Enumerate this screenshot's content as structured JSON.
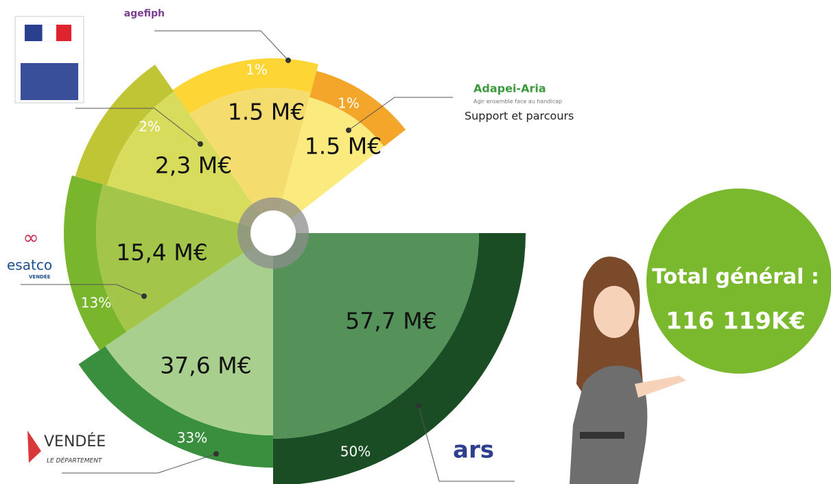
{
  "chart_data": {
    "type": "polar",
    "categories": [
      "ars",
      "VENDÉE",
      "esatco",
      null,
      "agefiph",
      "Adapei-Aria"
    ],
    "values": [
      57.7,
      37.6,
      15.4,
      2.3,
      1.5,
      1.5
    ],
    "value_labels": [
      "57,7 M€",
      "37,6 M€",
      "15,4 M€",
      "2,3 M€",
      "1.5 M€",
      "1.5 M€"
    ],
    "percentages": [
      50,
      33,
      13,
      2,
      1,
      1
    ],
    "percentage_labels": [
      "50%",
      "33%",
      "13%",
      "2%",
      "1%",
      "1%"
    ],
    "colors": [
      "#1b4d24",
      "#3a8f3e",
      "#79b52d",
      "#bfc535",
      "#fdd535",
      "#f3a62a"
    ],
    "inner_colors": [
      "#54925a",
      "#a8cf8e",
      "#a3c54a",
      "#d7dc5c",
      "#f5dc6e",
      "#fbeb7e"
    ],
    "logo_texts": {
      "vendee_sub": "LE DÉPARTEMENT",
      "esatco_sub": "VENDÉE",
      "adapei_tagline": "Agir ensemble face au handicap",
      "adapei_caption": "Support et parcours"
    },
    "total": {
      "title": "Total général :",
      "value": 116119,
      "value_label": "116 119K€",
      "color": "#7ab82e"
    }
  }
}
